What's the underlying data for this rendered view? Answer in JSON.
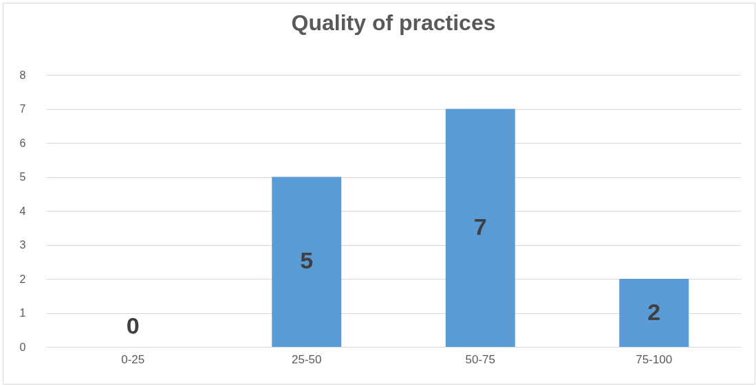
{
  "chart_data": {
    "type": "bar",
    "title": "Quality of practices",
    "categories": [
      "0-25",
      "25-50",
      "50-75",
      "75-100"
    ],
    "values": [
      0,
      5,
      7,
      2
    ],
    "color": "#5b9bd5",
    "ylim": [
      0,
      8
    ],
    "yticks": [
      0,
      1,
      2,
      3,
      4,
      5,
      6,
      7,
      8
    ],
    "grid": "y",
    "data_labels": true
  }
}
